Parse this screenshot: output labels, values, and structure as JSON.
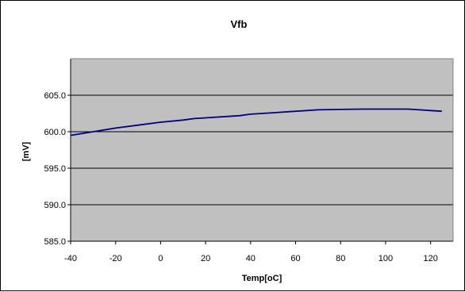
{
  "chart_data": {
    "type": "line",
    "title": "Vfb",
    "xlabel": "Temp[oC]",
    "ylabel": "[mV]",
    "xlim": [
      -40,
      130
    ],
    "ylim": [
      585.0,
      610.0
    ],
    "x_ticks": [
      "-40",
      "-20",
      "0",
      "20",
      "40",
      "60",
      "80",
      "100",
      "120"
    ],
    "x_tick_values": [
      -40,
      -20,
      0,
      20,
      40,
      60,
      80,
      100,
      120
    ],
    "y_ticks": [
      "585.0",
      "590.0",
      "595.0",
      "600.0",
      "605.0"
    ],
    "y_tick_values": [
      585.0,
      590.0,
      595.0,
      600.0,
      605.0
    ],
    "grid": "horizontal",
    "legend": "none",
    "plot_background": "#c0c0c0",
    "chart_background": "#ffffff",
    "gridline_color": "#000000",
    "series": [
      {
        "color": "#000080",
        "x": [
          -40,
          -30,
          -20,
          -10,
          0,
          10,
          15,
          20,
          30,
          35,
          40,
          50,
          60,
          70,
          80,
          90,
          100,
          110,
          115,
          120,
          125
        ],
        "values": [
          599.5,
          600.0,
          600.5,
          600.9,
          601.3,
          601.6,
          601.8,
          601.9,
          602.1,
          602.2,
          602.4,
          602.6,
          602.8,
          603.0,
          603.05,
          603.1,
          603.1,
          603.1,
          603.0,
          602.9,
          602.8
        ]
      }
    ]
  }
}
